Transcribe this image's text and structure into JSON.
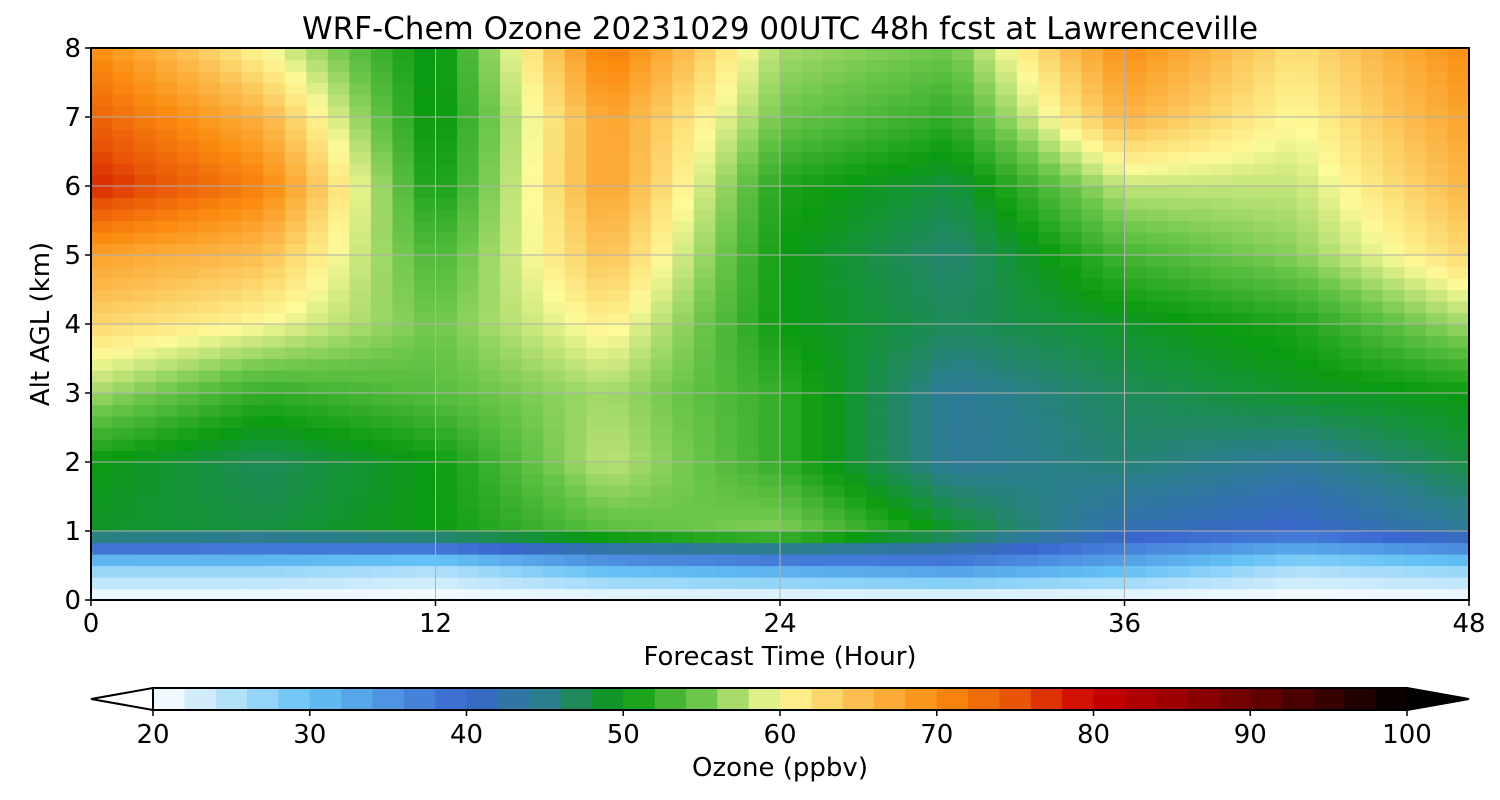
{
  "chart_data": {
    "type": "heatmap",
    "title": "WRF-Chem Ozone  20231029 00UTC 48h fcst at Lawrenceville",
    "xlabel": "Forecast Time (Hour)",
    "ylabel": "Alt AGL (km)",
    "xlim": [
      0,
      48
    ],
    "ylim": [
      0,
      8
    ],
    "x_ticks": [
      0,
      12,
      24,
      36,
      48
    ],
    "y_ticks": [
      0,
      1,
      2,
      3,
      4,
      5,
      6,
      7,
      8
    ],
    "grid": true,
    "x": [
      0,
      6,
      12,
      18,
      24,
      30,
      36,
      42,
      48
    ],
    "y": [
      0,
      0.5,
      1,
      2,
      3,
      4,
      5,
      6,
      7,
      8
    ],
    "z_ppbv": [
      [
        20,
        20,
        20,
        20,
        20,
        20,
        20,
        20,
        20
      ],
      [
        28,
        28,
        26,
        32,
        34,
        36,
        32,
        26,
        28
      ],
      [
        49,
        48,
        50,
        54,
        56,
        49,
        42,
        40,
        44
      ],
      [
        50,
        47,
        50,
        58,
        52,
        44,
        46,
        44,
        48
      ],
      [
        57,
        52,
        54,
        57,
        52,
        44,
        47,
        49,
        50
      ],
      [
        63,
        60,
        55,
        61,
        50,
        47,
        49,
        51,
        57
      ],
      [
        68,
        65,
        53,
        65,
        50,
        46,
        53,
        56,
        63
      ],
      [
        78,
        71,
        50,
        68,
        51,
        48,
        58,
        58,
        66
      ],
      [
        74,
        66,
        49,
        68,
        55,
        52,
        66,
        60,
        68
      ],
      [
        70,
        60,
        49,
        72,
        57,
        55,
        70,
        62,
        70
      ]
    ],
    "colorbar": {
      "label": "Ozone  (ppbv)",
      "min": 20,
      "max": 100,
      "ticks": [
        20,
        30,
        40,
        50,
        60,
        70,
        80,
        90,
        100
      ],
      "extend": "both",
      "stops": [
        {
          "v": 20,
          "c": "#ffffff"
        },
        {
          "v": 30,
          "c": "#64c2f5"
        },
        {
          "v": 40,
          "c": "#3a66cf"
        },
        {
          "v": 45,
          "c": "#2b7f8c"
        },
        {
          "v": 50,
          "c": "#0a9b10"
        },
        {
          "v": 55,
          "c": "#6cc64a"
        },
        {
          "v": 60,
          "c": "#fdfa98"
        },
        {
          "v": 65,
          "c": "#fcbe50"
        },
        {
          "v": 70,
          "c": "#fb8d10"
        },
        {
          "v": 75,
          "c": "#e85506"
        },
        {
          "v": 80,
          "c": "#cc0000"
        },
        {
          "v": 90,
          "c": "#6b0000"
        },
        {
          "v": 100,
          "c": "#000000"
        }
      ]
    }
  }
}
